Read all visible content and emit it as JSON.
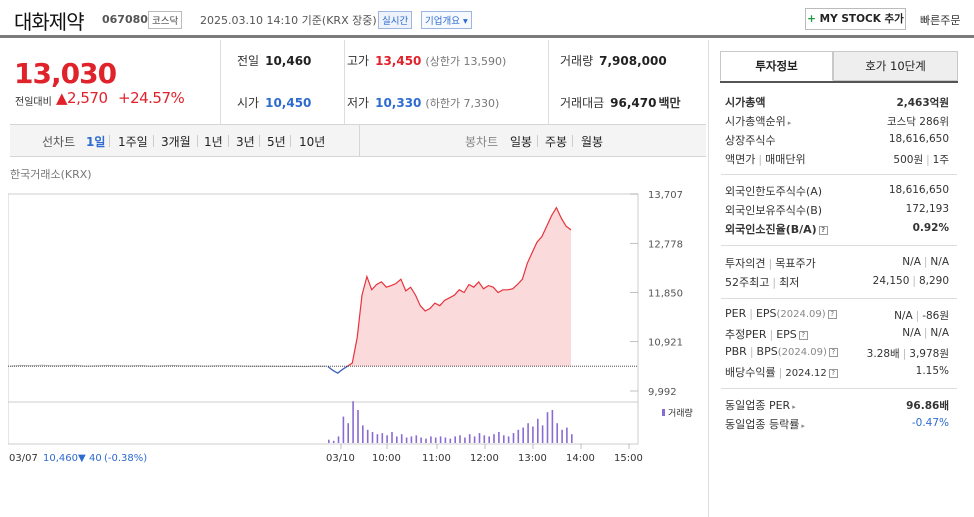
{
  "header": {
    "name": "대화제약",
    "code": "067080",
    "market": "코스닥",
    "date": "2025.03.10 14:10 기준(KRX 장중)",
    "realtime": "실시간",
    "company_info": "기업개요 ▾",
    "mystock_plus": "+",
    "mystock": "MY STOCK 추가",
    "quick_order": "빠른주문"
  },
  "price": {
    "current": "13,030",
    "change_label": "전일대비",
    "change_arrow": "▲",
    "change": "2,570",
    "rate": "+24.57%"
  },
  "summary": {
    "prev_label": "전일",
    "prev": "10,460",
    "high_label": "고가",
    "high": "13,450",
    "upper_limit": "(상한가 13,590)",
    "volume_label": "거래량",
    "volume": "7,908,000",
    "open_label": "시가",
    "open": "10,450",
    "low_label": "저가",
    "low": "10,330",
    "lower_limit": "(하한가 7,330)",
    "amount_label": "거래대금",
    "amount": "96,470",
    "amount_unit": "백만"
  },
  "tabs": {
    "line_chart": "선차트",
    "periods": [
      "1일",
      "1주일",
      "3개월",
      "1년",
      "3년",
      "5년",
      "10년"
    ],
    "candle_chart": "봉차트",
    "candles": [
      "일봉",
      "주봉",
      "월봉"
    ]
  },
  "exchange": "한국거래소(KRX)",
  "chart_data": {
    "type": "line",
    "y_ticks": [
      "13,707",
      "12,778",
      "11,850",
      "10,921",
      "9,992"
    ],
    "ylim": [
      9992,
      13707
    ],
    "baseline": 10460,
    "x_ticks": [
      "03/10",
      "10:00",
      "11:00",
      "12:00",
      "13:00",
      "14:00",
      "15:00"
    ],
    "volume_legend": "거래량",
    "prev_day_label": "03/07",
    "prev_close": "10,460",
    "prev_change_arrow": "▼",
    "prev_change": "40",
    "prev_rate": "(-0.38%)",
    "series": [
      {
        "values_prev_day": [
          10460,
          10475,
          10470,
          10480,
          10465,
          10472,
          10478,
          10462,
          10468,
          10475,
          10470,
          10466,
          10472,
          10460,
          10468,
          10474,
          10465,
          10470,
          10462,
          10468,
          10470,
          10465,
          10458,
          10462,
          10460,
          10455,
          10460,
          10452,
          10462,
          10460
        ]
      },
      {
        "values_today": [
          10450,
          10380,
          10330,
          10400,
          10460,
          10520,
          11000,
          11800,
          12150,
          11900,
          12000,
          12050,
          11950,
          11980,
          12020,
          12100,
          11880,
          11950,
          11800,
          11600,
          11500,
          11550,
          11650,
          11600,
          11700,
          11750,
          11800,
          11900,
          11850,
          12000,
          11950,
          12050,
          11920,
          11980,
          11950,
          11850,
          11900,
          11900,
          11920,
          12000,
          12100,
          12400,
          12600,
          12800,
          12900,
          13100,
          13300,
          13450,
          13250,
          13100,
          13030
        ]
      }
    ]
  },
  "right": {
    "tab1": "투자정보",
    "tab2": "호가 10단계",
    "rows": [
      {
        "l": "시가총액",
        "v": "2,463억원"
      },
      {
        "l": "시가총액순위",
        "v": "코스닥 286위"
      },
      {
        "l": "상장주식수",
        "v": "18,616,650"
      },
      {
        "l": "액면가",
        "l2": "매매단위",
        "v": "500원",
        "v2": "1주"
      },
      {
        "l": "외국인한도주식수(A)",
        "v": "18,616,650"
      },
      {
        "l": "외국인보유주식수(B)",
        "v": "172,193"
      },
      {
        "l": "외국인소진율(B/A)",
        "v": "0.92%"
      },
      {
        "l": "투자의견",
        "l2": "목표주가",
        "v": "N/A",
        "v2": "N/A"
      },
      {
        "l": "52주최고",
        "l2": "최저",
        "v": "24,150",
        "v2": "8,290"
      },
      {
        "l": "PER",
        "l2": "EPS",
        "l2s": "(2024.09)",
        "v": "N/A",
        "v2": "-86원"
      },
      {
        "l": "추정PER",
        "l2": "EPS",
        "v": "N/A",
        "v2": "N/A"
      },
      {
        "l": "PBR",
        "l2": "BPS",
        "l2s": "(2024.09)",
        "v": "3.28배",
        "v2": "3,978원"
      },
      {
        "l": "배당수익률",
        "l2s": "2024.12",
        "v": "1.15%"
      },
      {
        "l": "동일업종 PER",
        "v": "96.86배"
      },
      {
        "l": "동일업종 등락률",
        "v": "-0.47%"
      }
    ]
  }
}
